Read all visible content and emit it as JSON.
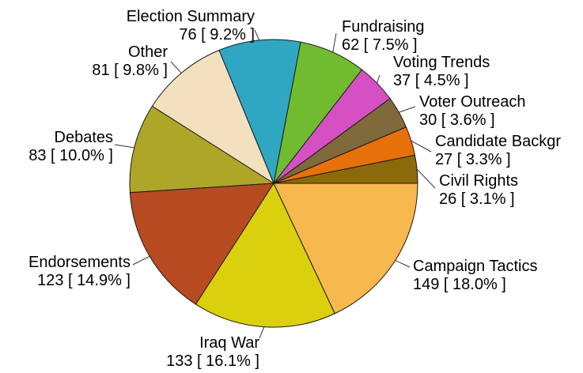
{
  "chart_data": {
    "type": "pie",
    "title": "",
    "start_angle_deg": 0,
    "direction": "counterclockwise",
    "slices": [
      {
        "label": "Civil Rights",
        "value": 26,
        "value_text": "26 [ 3.1% ]",
        "color": "#8B6A0B"
      },
      {
        "label": "Candidate Backgr",
        "value": 27,
        "value_text": "27 [ 3.3% ]",
        "color": "#E8700A"
      },
      {
        "label": "Voter Outreach",
        "value": 30,
        "value_text": "30 [ 3.6% ]",
        "color": "#80693B"
      },
      {
        "label": "Voting Trends",
        "value": 37,
        "value_text": "37 [ 4.5% ]",
        "color": "#D650C4"
      },
      {
        "label": "Fundraising",
        "value": 62,
        "value_text": "62 [ 7.5% ]",
        "color": "#71BB30"
      },
      {
        "label": "Election Summary",
        "value": 76,
        "value_text": "76 [ 9.2% ]",
        "color": "#2FA7C3"
      },
      {
        "label": "Other",
        "value": 81,
        "value_text": "81 [ 9.8% ]",
        "color": "#F2E0BF"
      },
      {
        "label": "Debates",
        "value": 83,
        "value_text": "83 [ 10.0% ]",
        "color": "#ADA629"
      },
      {
        "label": "Endorsements",
        "value": 123,
        "value_text": "123 [ 14.9% ]",
        "color": "#B84A22"
      },
      {
        "label": "Iraq War",
        "value": 133,
        "value_text": "133 [ 16.1% ]",
        "color": "#DAD00E"
      },
      {
        "label": "Campaign Tactics",
        "value": 149,
        "value_text": "149 [ 18.0% ]",
        "color": "#F7B84E"
      }
    ]
  }
}
